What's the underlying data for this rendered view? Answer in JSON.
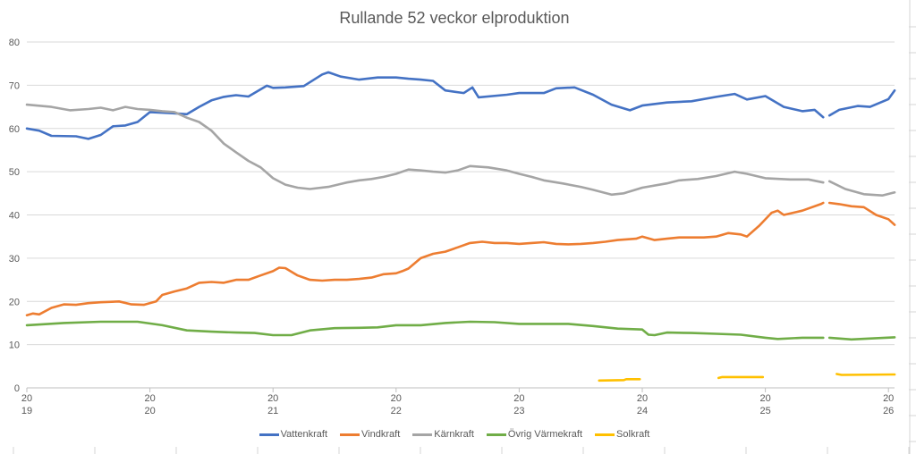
{
  "chart_data": {
    "type": "line",
    "title": "Rullande 52 veckor elproduktion",
    "xlabel": "",
    "ylabel": "",
    "ylim": [
      0,
      80
    ],
    "yticks": [
      0,
      10,
      20,
      30,
      40,
      50,
      60,
      70,
      80
    ],
    "xlim": [
      2019,
      2026.1
    ],
    "xticks": [
      {
        "value": 2019,
        "label": [
          "20",
          "19"
        ]
      },
      {
        "value": 2020,
        "label": [
          "20",
          "20"
        ]
      },
      {
        "value": 2021,
        "label": [
          "20",
          "21"
        ]
      },
      {
        "value": 2022,
        "label": [
          "20",
          "22"
        ]
      },
      {
        "value": 2023,
        "label": [
          "20",
          "23"
        ]
      },
      {
        "value": 2024,
        "label": [
          "20",
          "24"
        ]
      },
      {
        "value": 2025,
        "label": [
          "20",
          "25"
        ]
      },
      {
        "value": 2026,
        "label": [
          "20",
          "26"
        ]
      }
    ],
    "grid": "horizontal",
    "legend_position": "bottom",
    "series": [
      {
        "name": "Vattenkraft",
        "color": "#4472C4",
        "points": [
          [
            2019,
            60
          ],
          [
            2019.1,
            59.5
          ],
          [
            2019.2,
            58.3
          ],
          [
            2019.4,
            58.2
          ],
          [
            2019.5,
            57.6
          ],
          [
            2019.6,
            58.5
          ],
          [
            2019.7,
            60.5
          ],
          [
            2019.8,
            60.7
          ],
          [
            2019.9,
            61.5
          ],
          [
            2020,
            63.8
          ],
          [
            2020.2,
            63.5
          ],
          [
            2020.3,
            63.3
          ],
          [
            2020.4,
            65
          ],
          [
            2020.5,
            66.5
          ],
          [
            2020.6,
            67.3
          ],
          [
            2020.7,
            67.7
          ],
          [
            2020.8,
            67.4
          ],
          [
            2020.95,
            69.9
          ],
          [
            2021,
            69.4
          ],
          [
            2021.1,
            69.5
          ],
          [
            2021.25,
            69.8
          ],
          [
            2021.4,
            72.5
          ],
          [
            2021.45,
            73
          ],
          [
            2021.55,
            72
          ],
          [
            2021.7,
            71.3
          ],
          [
            2021.85,
            71.8
          ],
          [
            2022,
            71.8
          ],
          [
            2022.1,
            71.5
          ],
          [
            2022.2,
            71.3
          ],
          [
            2022.3,
            71
          ],
          [
            2022.4,
            68.8
          ],
          [
            2022.55,
            68.2
          ],
          [
            2022.62,
            69.5
          ],
          [
            2022.67,
            67.2
          ],
          [
            2022.9,
            67.8
          ],
          [
            2023,
            68.2
          ],
          [
            2023.2,
            68.2
          ],
          [
            2023.3,
            69.3
          ],
          [
            2023.45,
            69.5
          ],
          [
            2023.6,
            67.8
          ],
          [
            2023.75,
            65.5
          ],
          [
            2023.9,
            64.2
          ],
          [
            2024,
            65.3
          ],
          [
            2024.2,
            66
          ],
          [
            2024.4,
            66.3
          ],
          [
            2024.6,
            67.3
          ],
          [
            2024.75,
            68
          ],
          [
            2024.85,
            66.7
          ],
          [
            2025,
            67.5
          ],
          [
            2025.15,
            65
          ],
          [
            2025.3,
            64
          ],
          [
            2025.4,
            64.3
          ],
          [
            2025.47,
            62.6
          ],
          null,
          [
            2025.52,
            63
          ],
          [
            2025.6,
            64.3
          ],
          [
            2025.75,
            65.2
          ],
          [
            2025.85,
            65
          ],
          [
            2026,
            66.8
          ],
          [
            2026.05,
            68.8
          ]
        ]
      },
      {
        "name": "Vindkraft",
        "color": "#ED7D31",
        "points": [
          [
            2019,
            16.8
          ],
          [
            2019.05,
            17.2
          ],
          [
            2019.1,
            17
          ],
          [
            2019.2,
            18.5
          ],
          [
            2019.3,
            19.3
          ],
          [
            2019.4,
            19.2
          ],
          [
            2019.5,
            19.6
          ],
          [
            2019.6,
            19.8
          ],
          [
            2019.75,
            20
          ],
          [
            2019.85,
            19.3
          ],
          [
            2019.95,
            19.2
          ],
          [
            2020.05,
            20
          ],
          [
            2020.1,
            21.5
          ],
          [
            2020.2,
            22.3
          ],
          [
            2020.3,
            23
          ],
          [
            2020.4,
            24.3
          ],
          [
            2020.5,
            24.5
          ],
          [
            2020.6,
            24.3
          ],
          [
            2020.7,
            25
          ],
          [
            2020.8,
            25
          ],
          [
            2020.9,
            26
          ],
          [
            2021,
            27
          ],
          [
            2021.05,
            27.8
          ],
          [
            2021.1,
            27.7
          ],
          [
            2021.2,
            26
          ],
          [
            2021.3,
            25
          ],
          [
            2021.4,
            24.8
          ],
          [
            2021.5,
            25
          ],
          [
            2021.6,
            25
          ],
          [
            2021.7,
            25.2
          ],
          [
            2021.8,
            25.5
          ],
          [
            2021.9,
            26.3
          ],
          [
            2022,
            26.5
          ],
          [
            2022.05,
            27
          ],
          [
            2022.1,
            27.6
          ],
          [
            2022.2,
            30
          ],
          [
            2022.3,
            31
          ],
          [
            2022.4,
            31.5
          ],
          [
            2022.5,
            32.5
          ],
          [
            2022.6,
            33.5
          ],
          [
            2022.7,
            33.8
          ],
          [
            2022.8,
            33.5
          ],
          [
            2022.9,
            33.5
          ],
          [
            2023,
            33.3
          ],
          [
            2023.1,
            33.5
          ],
          [
            2023.2,
            33.7
          ],
          [
            2023.3,
            33.3
          ],
          [
            2023.4,
            33.2
          ],
          [
            2023.5,
            33.3
          ],
          [
            2023.6,
            33.5
          ],
          [
            2023.7,
            33.8
          ],
          [
            2023.8,
            34.2
          ],
          [
            2023.95,
            34.5
          ],
          [
            2024,
            35
          ],
          [
            2024.1,
            34.2
          ],
          [
            2024.2,
            34.5
          ],
          [
            2024.3,
            34.8
          ],
          [
            2024.5,
            34.8
          ],
          [
            2024.6,
            35
          ],
          [
            2024.7,
            35.8
          ],
          [
            2024.8,
            35.5
          ],
          [
            2024.85,
            35
          ],
          [
            2024.95,
            37.5
          ],
          [
            2025.05,
            40.5
          ],
          [
            2025.1,
            41
          ],
          [
            2025.15,
            40
          ],
          [
            2025.3,
            41
          ],
          [
            2025.45,
            42.5
          ],
          [
            2025.47,
            42.8
          ],
          null,
          [
            2025.52,
            42.8
          ],
          [
            2025.6,
            42.5
          ],
          [
            2025.7,
            42
          ],
          [
            2025.8,
            41.8
          ],
          [
            2025.9,
            40
          ],
          [
            2026,
            39
          ],
          [
            2026.05,
            37.7
          ]
        ]
      },
      {
        "name": "Kärnkraft",
        "color": "#A5A5A5",
        "points": [
          [
            2019,
            65.5
          ],
          [
            2019.2,
            65
          ],
          [
            2019.35,
            64.2
          ],
          [
            2019.5,
            64.5
          ],
          [
            2019.6,
            64.8
          ],
          [
            2019.7,
            64.2
          ],
          [
            2019.8,
            65
          ],
          [
            2019.9,
            64.5
          ],
          [
            2020,
            64.3
          ],
          [
            2020.1,
            64
          ],
          [
            2020.2,
            63.8
          ],
          [
            2020.3,
            62.5
          ],
          [
            2020.4,
            61.5
          ],
          [
            2020.5,
            59.5
          ],
          [
            2020.6,
            56.5
          ],
          [
            2020.7,
            54.5
          ],
          [
            2020.8,
            52.5
          ],
          [
            2020.9,
            51
          ],
          [
            2021,
            48.5
          ],
          [
            2021.1,
            47
          ],
          [
            2021.2,
            46.3
          ],
          [
            2021.3,
            46
          ],
          [
            2021.45,
            46.5
          ],
          [
            2021.6,
            47.5
          ],
          [
            2021.7,
            48
          ],
          [
            2021.8,
            48.3
          ],
          [
            2021.9,
            48.8
          ],
          [
            2022,
            49.5
          ],
          [
            2022.1,
            50.5
          ],
          [
            2022.2,
            50.3
          ],
          [
            2022.3,
            50
          ],
          [
            2022.4,
            49.8
          ],
          [
            2022.5,
            50.3
          ],
          [
            2022.6,
            51.3
          ],
          [
            2022.75,
            51
          ],
          [
            2022.9,
            50.3
          ],
          [
            2023,
            49.5
          ],
          [
            2023.1,
            48.8
          ],
          [
            2023.2,
            48
          ],
          [
            2023.35,
            47.3
          ],
          [
            2023.5,
            46.5
          ],
          [
            2023.6,
            45.8
          ],
          [
            2023.75,
            44.7
          ],
          [
            2023.85,
            45
          ],
          [
            2024,
            46.3
          ],
          [
            2024.2,
            47.3
          ],
          [
            2024.3,
            48
          ],
          [
            2024.45,
            48.3
          ],
          [
            2024.6,
            49
          ],
          [
            2024.75,
            50
          ],
          [
            2024.85,
            49.5
          ],
          [
            2025,
            48.5
          ],
          [
            2025.2,
            48.2
          ],
          [
            2025.35,
            48.2
          ],
          [
            2025.47,
            47.5
          ],
          null,
          [
            2025.52,
            47.8
          ],
          [
            2025.65,
            46
          ],
          [
            2025.8,
            44.8
          ],
          [
            2025.95,
            44.5
          ],
          [
            2026.05,
            45.2
          ]
        ]
      },
      {
        "name": "Övrig Värmekraft",
        "color": "#70AD47",
        "points": [
          [
            2019,
            14.5
          ],
          [
            2019.3,
            15
          ],
          [
            2019.6,
            15.3
          ],
          [
            2019.9,
            15.3
          ],
          [
            2020.1,
            14.5
          ],
          [
            2020.3,
            13.3
          ],
          [
            2020.5,
            13
          ],
          [
            2020.7,
            12.8
          ],
          [
            2020.85,
            12.7
          ],
          [
            2021,
            12.2
          ],
          [
            2021.15,
            12.2
          ],
          [
            2021.3,
            13.3
          ],
          [
            2021.5,
            13.8
          ],
          [
            2021.7,
            13.9
          ],
          [
            2021.85,
            14
          ],
          [
            2022,
            14.5
          ],
          [
            2022.2,
            14.5
          ],
          [
            2022.4,
            15
          ],
          [
            2022.6,
            15.3
          ],
          [
            2022.8,
            15.2
          ],
          [
            2023,
            14.8
          ],
          [
            2023.2,
            14.8
          ],
          [
            2023.4,
            14.8
          ],
          [
            2023.6,
            14.3
          ],
          [
            2023.8,
            13.7
          ],
          [
            2024,
            13.5
          ],
          [
            2024.05,
            12.3
          ],
          [
            2024.1,
            12.2
          ],
          [
            2024.2,
            12.8
          ],
          [
            2024.4,
            12.7
          ],
          [
            2024.6,
            12.5
          ],
          [
            2024.8,
            12.3
          ],
          [
            2025,
            11.6
          ],
          [
            2025.1,
            11.3
          ],
          [
            2025.3,
            11.6
          ],
          [
            2025.47,
            11.6
          ],
          null,
          [
            2025.52,
            11.6
          ],
          [
            2025.7,
            11.2
          ],
          [
            2025.9,
            11.5
          ],
          [
            2026.05,
            11.7
          ]
        ]
      },
      {
        "name": "Solkraft",
        "color": "#FFC000",
        "points": [
          [
            2023.65,
            1.7
          ],
          [
            2023.85,
            1.8
          ],
          [
            2023.87,
            2
          ],
          [
            2023.98,
            2
          ],
          null,
          [
            2024.62,
            2.3
          ],
          [
            2024.65,
            2.5
          ],
          [
            2024.98,
            2.5
          ],
          null,
          [
            2025.58,
            3.2
          ],
          [
            2025.62,
            3
          ],
          [
            2026.05,
            3.1
          ]
        ]
      }
    ]
  }
}
